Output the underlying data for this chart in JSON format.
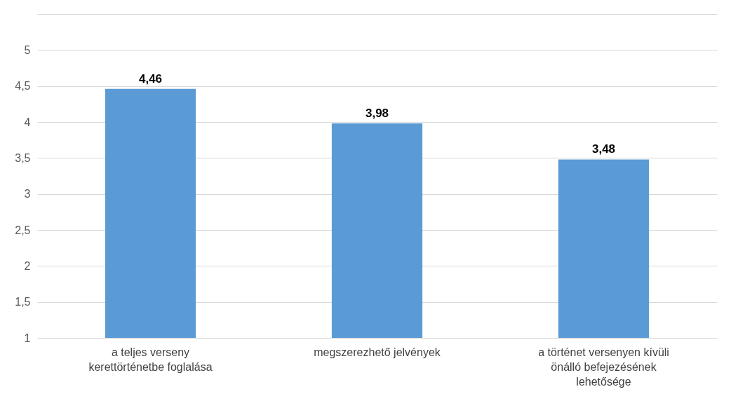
{
  "chart_data": {
    "type": "bar",
    "categories": [
      "a teljes verseny kerettörténetbe foglalása",
      "megszerezhető jelvények",
      "a történet versenyen kívüli önálló befejezésének lehetősége"
    ],
    "values": [
      4.46,
      3.98,
      3.48
    ],
    "value_labels": [
      "4,46",
      "3,98",
      "3,48"
    ],
    "color": "#5b9bd5",
    "ylim": [
      1,
      5.5
    ],
    "yticks": [
      1,
      {
        "value": 1.5,
        "label": "1,5"
      },
      2,
      {
        "value": 2.5,
        "label": "2,5"
      },
      3,
      {
        "value": 3.5,
        "label": "3,5"
      },
      4,
      {
        "value": 4.5,
        "label": "4,5"
      },
      5,
      {
        "value": 5.5,
        "label": null
      }
    ],
    "grid": true
  }
}
